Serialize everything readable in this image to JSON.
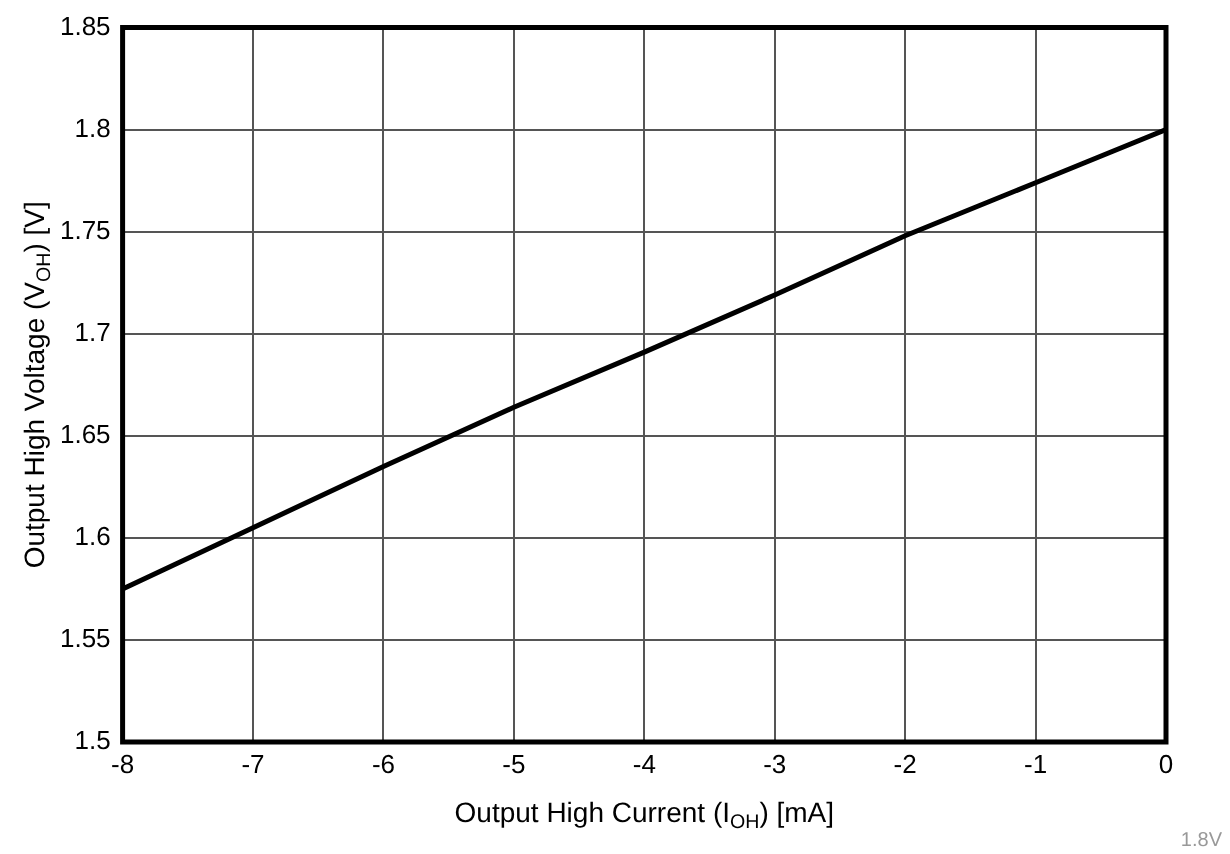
{
  "chart_data": {
    "type": "line",
    "xlabel": "Output High Current (I$_{OH}$) [mA]",
    "ylabel": "Output High Voltage (V$_{OH}$) [V]",
    "x": [
      -8,
      -7,
      -6,
      -5,
      -4,
      -3,
      -2,
      -1,
      0
    ],
    "series": [
      {
        "color": "#000000",
        "values": [
          1.575,
          1.605,
          1.635,
          1.664,
          1.691,
          1.719,
          1.748,
          1.774,
          1.8
        ]
      }
    ],
    "xlim": [
      -8,
      0
    ],
    "xticks": [
      -8,
      -7,
      -6,
      -5,
      -4,
      -3,
      -2,
      -1,
      0
    ],
    "ylim": [
      1.5,
      1.85
    ],
    "yticks": [
      1.5,
      1.55,
      1.6,
      1.65,
      1.7,
      1.75,
      1.8,
      1.85
    ],
    "grid": true,
    "legend": false,
    "marker": "none",
    "line_style": "solid",
    "annotations": [
      "1.8V"
    ]
  }
}
